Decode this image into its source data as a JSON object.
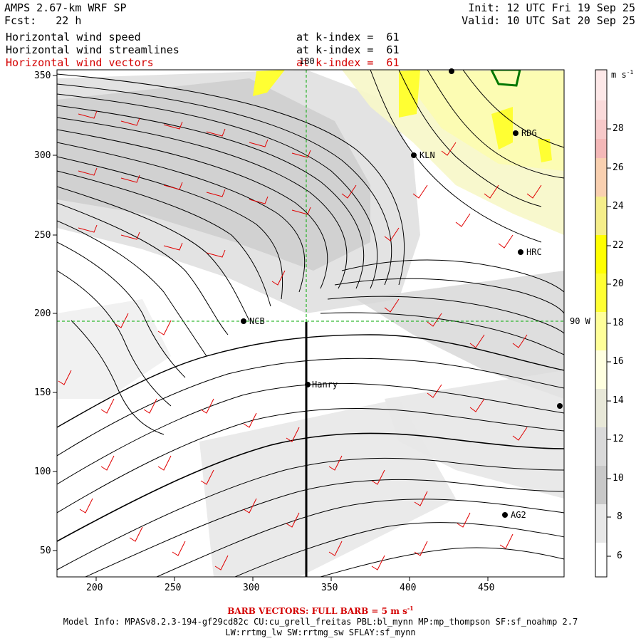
{
  "header": {
    "title": "AMPS 2.67-km WRF SP",
    "fcst": "Fcst:   22 h",
    "init": "Init: 12 UTC Fri 19 Sep 25",
    "valid": "Valid: 10 UTC Sat 20 Sep 25"
  },
  "fields": [
    {
      "name": "Horizontal wind speed",
      "level": "at k-index =  61",
      "color": "#000000"
    },
    {
      "name": "Horizontal wind streamlines",
      "level": "at k-index =  61",
      "color": "#000000"
    },
    {
      "name": "Horizontal wind vectors",
      "level": "at k-index =  61",
      "color": "#d40000"
    }
  ],
  "axes": {
    "x_ticks": [
      "200",
      "250",
      "300",
      "350",
      "400",
      "450"
    ],
    "y_ticks": [
      "350",
      "300",
      "250",
      "200",
      "150",
      "100",
      "50"
    ],
    "meridian_label": "180",
    "parallel_label": "90 W"
  },
  "stations": [
    {
      "name": "RDG"
    },
    {
      "name": "KLN"
    },
    {
      "name": "HRC"
    },
    {
      "name": "NCB"
    },
    {
      "name": "Hanry"
    },
    {
      "name": "AG2"
    },
    {
      "name": ""
    },
    {
      "name": ""
    }
  ],
  "colorbar": {
    "units": "m s",
    "units_exp": "-1",
    "labels": [
      "28",
      "26",
      "24",
      "22",
      "20",
      "18",
      "16",
      "14",
      "12",
      "10",
      "8",
      "6"
    ],
    "colors": [
      "#ffffff",
      "#e8e8e8",
      "#c8c8c8",
      "#d9d9d9",
      "#e8e8d8",
      "#ffffe0",
      "#ffff99",
      "#ffff33",
      "#ffff00",
      "#f5ee8a",
      "#f9d0b0",
      "#f4b8b8",
      "#f7c9c9",
      "#fadada",
      "#fde8e8"
    ]
  },
  "footer": {
    "barb_note": "BARB VECTORS: FULL BARB = 5 m s",
    "barb_exp": "-1",
    "model_line1": "Model Info: MPASv8.2.3-194-gf29cd82c CU:cu_grell_freitas PBL:bl_mynn MP:mp_thompson SF:sf_noahmp 2.7",
    "model_line2": "LW:rrtmg_lw SW:rrtmg_sw SFLAY:sf_mynn"
  }
}
